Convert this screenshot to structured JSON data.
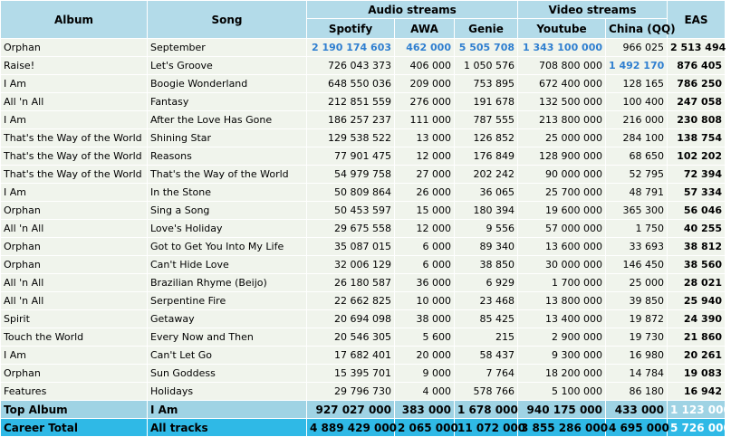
{
  "headers": {
    "album": "Album",
    "song": "Song",
    "audio": "Audio streams",
    "video": "Video streams",
    "eas": "EAS",
    "spotify": "Spotify",
    "awa": "AWA",
    "genie": "Genie",
    "youtube": "Youtube",
    "china": "China (QQ)"
  },
  "colors": {
    "header_bg": "#b3dbe9",
    "row_bg": "#f0f4ec",
    "highlight_text": "#2f7fd0",
    "top_album_bg": "#9fd3e4",
    "career_total_bg": "#2fb9e6"
  },
  "rows": [
    {
      "album": "Orphan",
      "song": "September",
      "spotify": "2 190 174 603",
      "awa": "462 000",
      "genie": "5 505 708",
      "youtube": "1 343 100 000",
      "china": "966 025",
      "eas": "2 513 494",
      "hl": [
        "spotify",
        "awa",
        "genie",
        "youtube"
      ]
    },
    {
      "album": "Raise!",
      "song": "Let's Groove",
      "spotify": "726 043 373",
      "awa": "406 000",
      "genie": "1 050 576",
      "youtube": "708 800 000",
      "china": "1 492 170",
      "eas": "876 405",
      "hl": [
        "china"
      ]
    },
    {
      "album": "I Am",
      "song": "Boogie Wonderland",
      "spotify": "648 550 036",
      "awa": "209 000",
      "genie": "753 895",
      "youtube": "672 400 000",
      "china": "128 165",
      "eas": "786 250",
      "hl": []
    },
    {
      "album": "All 'n All",
      "song": "Fantasy",
      "spotify": "212 851 559",
      "awa": "276 000",
      "genie": "191 678",
      "youtube": "132 500 000",
      "china": "100 400",
      "eas": "247 058",
      "hl": []
    },
    {
      "album": "I Am",
      "song": "After the Love Has Gone",
      "spotify": "186 257 237",
      "awa": "111 000",
      "genie": "787 555",
      "youtube": "213 800 000",
      "china": "216 000",
      "eas": "230 808",
      "hl": []
    },
    {
      "album": "That's the Way of the World",
      "song": "Shining Star",
      "spotify": "129 538 522",
      "awa": "13 000",
      "genie": "126 852",
      "youtube": "25 000 000",
      "china": "284 100",
      "eas": "138 754",
      "hl": []
    },
    {
      "album": "That's the Way of the World",
      "song": "Reasons",
      "spotify": "77 901 475",
      "awa": "12 000",
      "genie": "176 849",
      "youtube": "128 900 000",
      "china": "68 650",
      "eas": "102 202",
      "hl": []
    },
    {
      "album": "That's the Way of the World",
      "song": "That's the Way of the World",
      "spotify": "54 979 758",
      "awa": "27 000",
      "genie": "202 242",
      "youtube": "90 000 000",
      "china": "52 795",
      "eas": "72 394",
      "hl": []
    },
    {
      "album": "I Am",
      "song": "In the Stone",
      "spotify": "50 809 864",
      "awa": "26 000",
      "genie": "36 065",
      "youtube": "25 700 000",
      "china": "48 791",
      "eas": "57 334",
      "hl": []
    },
    {
      "album": "Orphan",
      "song": "Sing a Song",
      "spotify": "50 453 597",
      "awa": "15 000",
      "genie": "180 394",
      "youtube": "19 600 000",
      "china": "365 300",
      "eas": "56 046",
      "hl": []
    },
    {
      "album": "All 'n All",
      "song": "Love's Holiday",
      "spotify": "29 675 558",
      "awa": "12 000",
      "genie": "9 556",
      "youtube": "57 000 000",
      "china": "1 750",
      "eas": "40 255",
      "hl": []
    },
    {
      "album": "Orphan",
      "song": "Got to Get You Into My Life",
      "spotify": "35 087 015",
      "awa": "6 000",
      "genie": "89 340",
      "youtube": "13 600 000",
      "china": "33 693",
      "eas": "38 812",
      "hl": []
    },
    {
      "album": "Orphan",
      "song": "Can't Hide Love",
      "spotify": "32 006 129",
      "awa": "6 000",
      "genie": "38 850",
      "youtube": "30 000 000",
      "china": "146 450",
      "eas": "38 560",
      "hl": []
    },
    {
      "album": "All 'n All",
      "song": "Brazilian Rhyme (Beijo)",
      "spotify": "26 180 587",
      "awa": "36 000",
      "genie": "6 929",
      "youtube": "1 700 000",
      "china": "25 000",
      "eas": "28 021",
      "hl": []
    },
    {
      "album": "All 'n All",
      "song": "Serpentine Fire",
      "spotify": "22 662 825",
      "awa": "10 000",
      "genie": "23 468",
      "youtube": "13 800 000",
      "china": "39 850",
      "eas": "25 940",
      "hl": []
    },
    {
      "album": "Spirit",
      "song": "Getaway",
      "spotify": "20 694 098",
      "awa": "38 000",
      "genie": "85 425",
      "youtube": "13 400 000",
      "china": "19 872",
      "eas": "24 390",
      "hl": []
    },
    {
      "album": "Touch the World",
      "song": "Every Now and Then",
      "spotify": "20 546 305",
      "awa": "5 600",
      "genie": "215",
      "youtube": "2 900 000",
      "china": "19 730",
      "eas": "21 860",
      "hl": []
    },
    {
      "album": "I Am",
      "song": "Can't Let Go",
      "spotify": "17 682 401",
      "awa": "20 000",
      "genie": "58 437",
      "youtube": "9 300 000",
      "china": "16 980",
      "eas": "20 261",
      "hl": []
    },
    {
      "album": "Orphan",
      "song": "Sun Goddess",
      "spotify": "15 395 701",
      "awa": "9 000",
      "genie": "7 764",
      "youtube": "18 200 000",
      "china": "14 784",
      "eas": "19 083",
      "hl": []
    },
    {
      "album": "Features",
      "song": "Holidays",
      "spotify": "29 796 730",
      "awa": "4 000",
      "genie": "578 766",
      "youtube": "5 100 000",
      "china": "86 180",
      "eas": "16 942",
      "hl": []
    }
  ],
  "top_album": {
    "album": "Top Album",
    "song": "I Am",
    "spotify": "927 027 000",
    "awa": "383 000",
    "genie": "1 678 000",
    "youtube": "940 175 000",
    "china": "433 000",
    "eas": "1 123 000"
  },
  "career_total": {
    "album": "Career Total",
    "song": "All tracks",
    "spotify": "4 889 429 000",
    "awa": "2 065 000",
    "genie": "11 072 000",
    "youtube": "3 855 286 000",
    "china": "4 695 000",
    "eas": "5 726 000"
  }
}
